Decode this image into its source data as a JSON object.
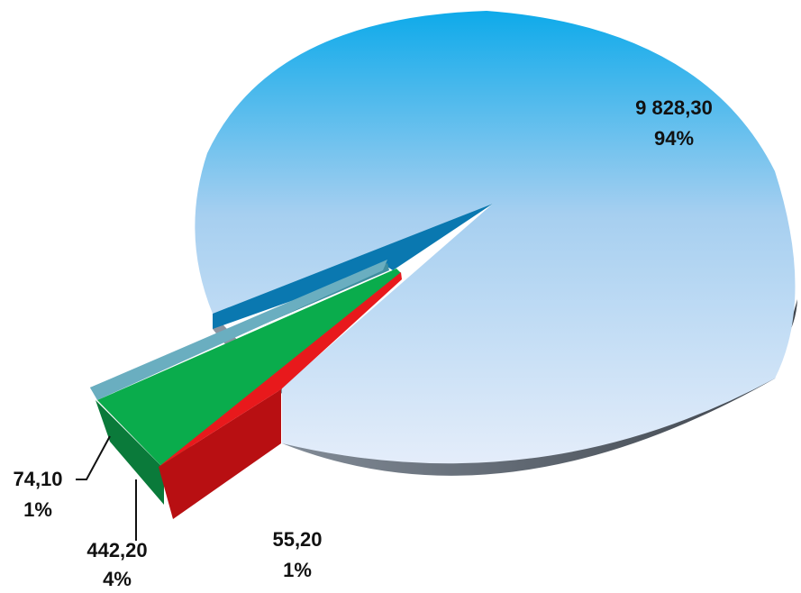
{
  "chart_data": {
    "type": "pie",
    "style": "3d-exploded",
    "title": "",
    "slices": [
      {
        "value_label": "9 828,30",
        "value": 9828.3,
        "percent_label": "94%",
        "color": "#5bb8ea"
      },
      {
        "value_label": "55,20",
        "value": 55.2,
        "percent_label": "1%",
        "color": "#e8191c"
      },
      {
        "value_label": "442,20",
        "value": 442.2,
        "percent_label": "4%",
        "color": "#0aac4c"
      },
      {
        "value_label": "74,10",
        "value": 74.1,
        "percent_label": "1%",
        "color": "#6aaec0"
      }
    ],
    "legend": "none"
  }
}
